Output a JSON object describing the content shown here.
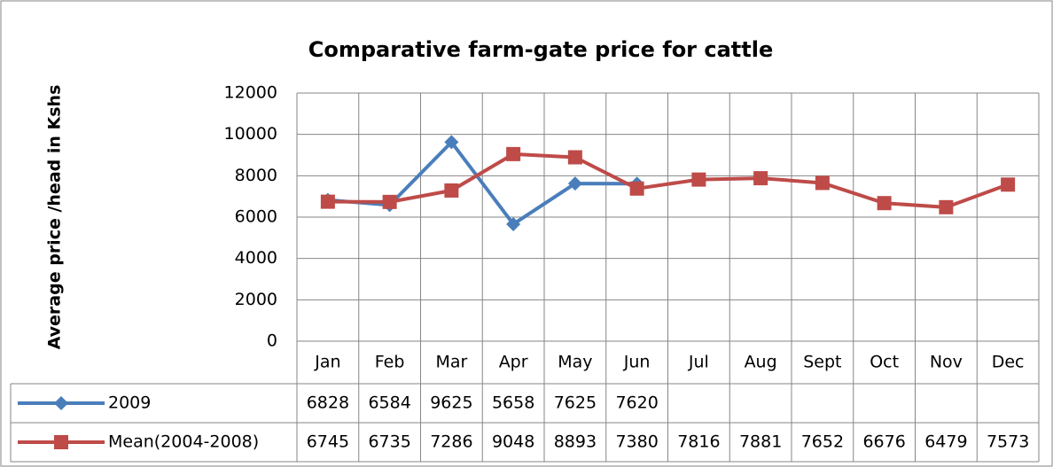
{
  "chart_data": {
    "type": "line",
    "title": "Comparative farm-gate price for cattle",
    "y_label": "Average price /head in Kshs",
    "categories": [
      "Jan",
      "Feb",
      "Mar",
      "Apr",
      "May",
      "Jun",
      "Jul",
      "Aug",
      "Sept",
      "Oct",
      "Nov",
      "Dec"
    ],
    "series": [
      {
        "name": "2009",
        "color": "#4a7ebb",
        "marker": "diamond",
        "values": [
          6828,
          6584,
          9625,
          5658,
          7625,
          7620,
          null,
          null,
          null,
          null,
          null,
          null
        ]
      },
      {
        "name": "Mean(2004-2008)",
        "color": "#be4b48",
        "marker": "square",
        "values": [
          6745,
          6735,
          7286,
          9048,
          8893,
          7380,
          7816,
          7881,
          7652,
          6676,
          6479,
          7573
        ]
      }
    ],
    "ylim": [
      0,
      12000
    ],
    "yticks": [
      0,
      2000,
      4000,
      6000,
      8000,
      10000,
      12000
    ],
    "grid": true,
    "data_table": true
  }
}
